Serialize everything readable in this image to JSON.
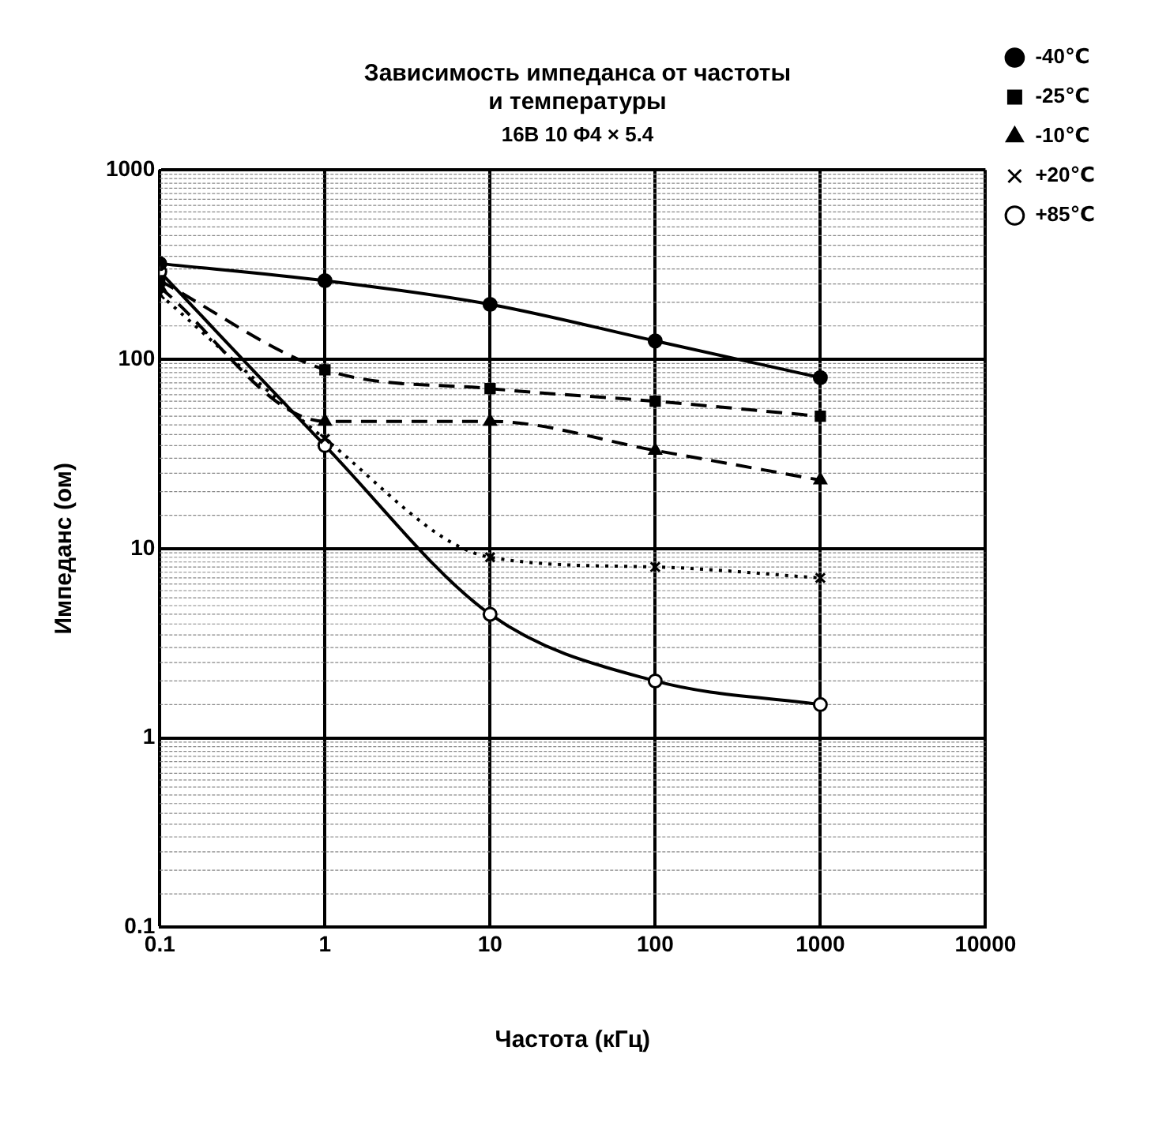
{
  "chart_data": {
    "type": "line",
    "title": [
      "Зависимость импеданса от частоты",
      "и температуры"
    ],
    "subtitle": "16В 10 Φ4 × 5.4",
    "xlabel": "Частота (кГц)",
    "ylabel": "Импеданс (ом)",
    "x": [
      0.1,
      1,
      10,
      100,
      1000
    ],
    "log": "xy",
    "xlim": [
      0.1,
      10000
    ],
    "ylim": [
      0.1,
      1000
    ],
    "xticks": [
      0.1,
      1,
      10,
      100,
      1000,
      10000
    ],
    "yticks": [
      0.1,
      1,
      10,
      100,
      1000
    ],
    "grid": true,
    "legend": "top right",
    "series": [
      {
        "name": "-40℃",
        "color": "#000000",
        "values": [
          320,
          260,
          195,
          125,
          80
        ],
        "marker": "circle",
        "line_style": "solid"
      },
      {
        "name": "-25℃",
        "color": "#000000",
        "values": [
          260,
          88,
          70,
          60,
          50
        ],
        "marker": "square",
        "line_style": "dashed"
      },
      {
        "name": "-10℃",
        "color": "#000000",
        "values": [
          240,
          47,
          47,
          33,
          23
        ],
        "marker": "triangle",
        "line_style": "dashed"
      },
      {
        "name": "+20℃",
        "color": "#000000",
        "values": [
          220,
          38,
          9,
          8,
          7
        ],
        "marker": "cross",
        "line_style": "dotted"
      },
      {
        "name": "+85℃",
        "color": "#000000",
        "values": [
          290,
          35,
          4.5,
          2,
          1.5
        ],
        "marker": "circle",
        "line_style": "solid"
      }
    ]
  }
}
